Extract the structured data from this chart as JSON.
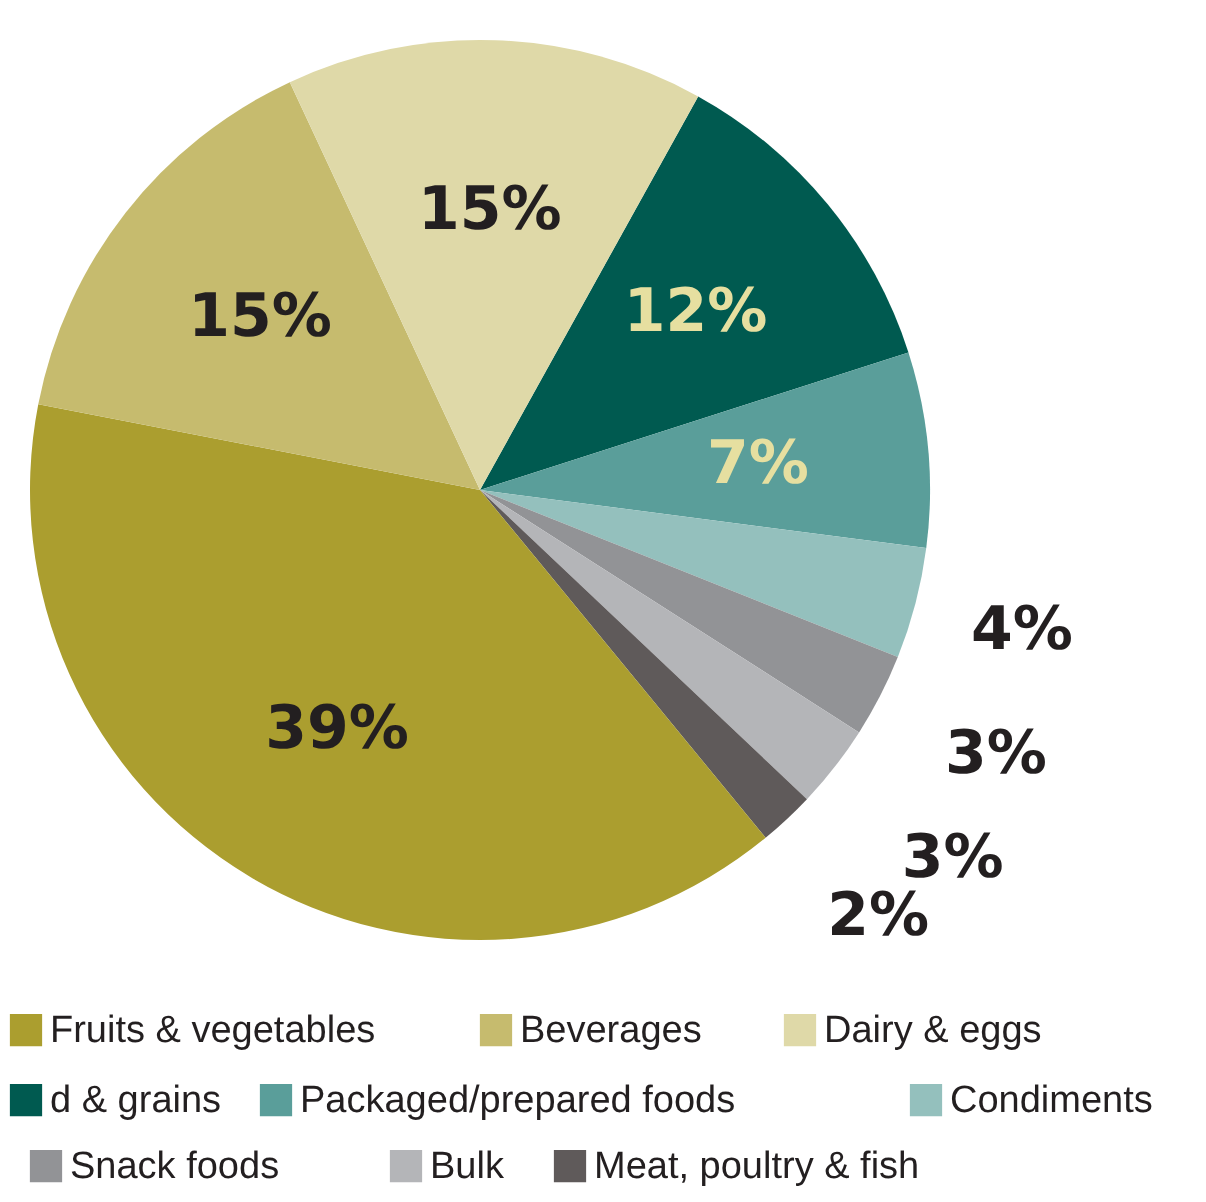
{
  "chart_data": {
    "type": "pie",
    "categories": [
      "d & grains",
      "Packaged/prepared foods",
      "Condiments",
      "Snack foods",
      "Bulk",
      "Meat, poultry & fish",
      "Fruits & vegetables",
      "Beverages",
      "Dairy & eggs"
    ],
    "values": [
      12,
      7,
      4,
      3,
      3,
      2,
      39,
      15,
      15
    ],
    "colors": [
      "#005a50",
      "#5a9e9a",
      "#94c0bd",
      "#929396",
      "#b4b5b8",
      "#5f5a5a",
      "#ab9e2f",
      "#c6bb6e",
      "#dfd9a8"
    ],
    "value_labels": [
      "12%",
      "7%",
      "4%",
      "3%",
      "3%",
      "2%",
      "39%",
      "15%",
      "15%"
    ],
    "legend": "bottom"
  }
}
